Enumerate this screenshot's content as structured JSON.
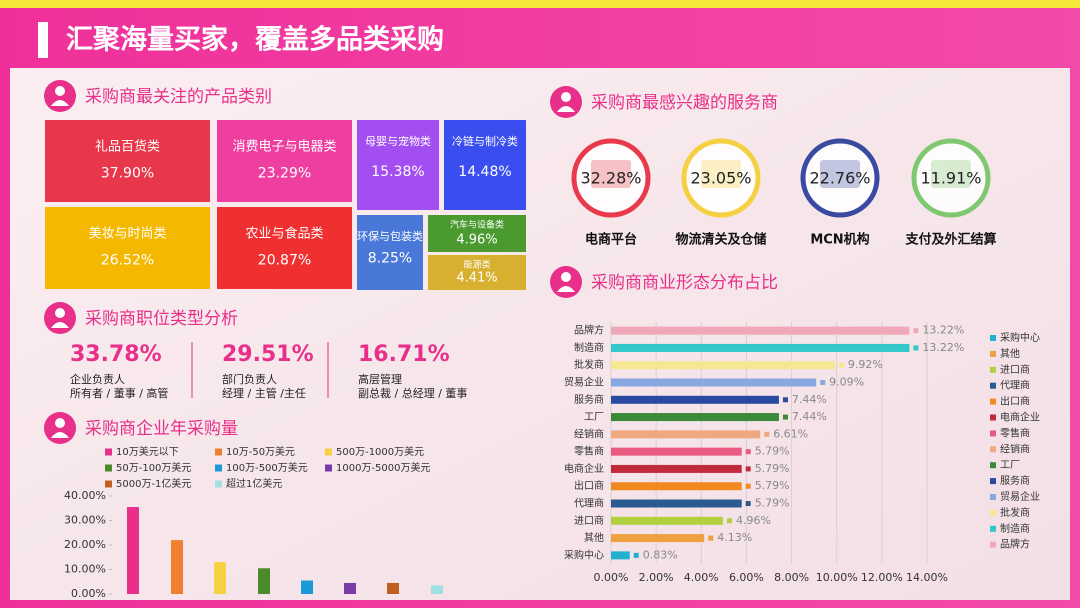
{
  "title": "汇聚海量买家，覆盖多品类采购",
  "chart_data": [
    {
      "type": "treemap",
      "title": "采购商最关注的产品类别",
      "categories": [
        "礼品百货类",
        "消费电子与电器类",
        "美妆与时尚类",
        "农业与食品类",
        "母婴与宠物类",
        "冷链与制冷类",
        "环保与包装类",
        "汽车与设备类",
        "能源类"
      ],
      "values": [
        37.9,
        23.29,
        26.52,
        20.87,
        15.38,
        14.48,
        8.25,
        4.96,
        4.41
      ],
      "value_labels": [
        "37.90%",
        "23.29%",
        "26.52%",
        "20.87%",
        "15.38%",
        "14.48%",
        "8.25%",
        "4.96%",
        "4.41%"
      ],
      "colors": [
        "#e8364a",
        "#ee3fa0",
        "#f5b800",
        "#f03030",
        "#a24ef0",
        "#3a4ef0",
        "#4a78d8",
        "#4a9a30",
        "#d8b030"
      ]
    },
    {
      "type": "stat",
      "title": "采购商职位类型分析",
      "values": [
        33.78,
        29.51,
        16.71
      ],
      "value_labels": [
        "33.78%",
        "29.51%",
        "16.71%"
      ],
      "descriptions": [
        [
          "企业负责人",
          "所有者 / 董事 / 高管"
        ],
        [
          "部门负责人",
          "经理 / 主管 /主任"
        ],
        [
          "高层管理",
          "副总裁 / 总经理 / 董事"
        ]
      ]
    },
    {
      "type": "bar",
      "title": "采购商企业年采购量",
      "categories": [
        "10万美元以下",
        "10万-50万美元",
        "500万-1000万美元",
        "50万-100万美元",
        "100万-500万美元",
        "1000万-5000万美元",
        "5000万-1亿美元",
        "超过1亿美元"
      ],
      "values": [
        35.5,
        22,
        13,
        10.5,
        5.5,
        4.5,
        4.5,
        3.5
      ],
      "colors": [
        "#e8308a",
        "#f08030",
        "#f5d040",
        "#4a8a2a",
        "#1a9ad8",
        "#7a3aa8",
        "#c06020",
        "#a0e0e0"
      ],
      "ylim": [
        0,
        40
      ],
      "yticks": [
        {
          "value": 0,
          "label": "0.00%"
        },
        {
          "value": 10,
          "label": "10.00%"
        },
        {
          "value": 20,
          "label": "20.00%"
        },
        {
          "value": 30,
          "label": "30.00%"
        },
        {
          "value": 40,
          "label": "40.00%"
        }
      ]
    },
    {
      "type": "ring",
      "title": "采购商最感兴趣的服务商",
      "categories": [
        "电商平台",
        "物流清关及仓储",
        "MCN机构",
        "支付及外汇结算"
      ],
      "values": [
        32.28,
        23.05,
        22.76,
        11.91
      ],
      "value_labels": [
        "32.28%",
        "23.05%",
        "22.76%",
        "11.91%"
      ],
      "colors": [
        "#e83a4a",
        "#f5d040",
        "#3a4aa0",
        "#80c870"
      ]
    },
    {
      "type": "hbar",
      "title": "采购商商业形态分布占比",
      "categories": [
        "品牌方",
        "制造商",
        "批发商",
        "贸易企业",
        "服务商",
        "工厂",
        "经销商",
        "零售商",
        "电商企业",
        "出口商",
        "代理商",
        "进口商",
        "其他",
        "采购中心"
      ],
      "values": [
        13.22,
        13.22,
        9.92,
        9.09,
        7.44,
        7.44,
        6.61,
        5.79,
        5.79,
        5.79,
        5.79,
        4.96,
        4.13,
        0.83
      ],
      "value_labels": [
        "13.22%",
        "13.22%",
        "9.92%",
        "9.09%",
        "7.44%",
        "7.44%",
        "6.61%",
        "5.79%",
        "5.79%",
        "5.79%",
        "5.79%",
        "4.96%",
        "4.13%",
        "0.83%"
      ],
      "colors": [
        "#f0a8b8",
        "#30c8c8",
        "#f5e890",
        "#8aa8e0",
        "#2a4aa0",
        "#3a8a3a",
        "#f0a880",
        "#e85a80",
        "#c02a3a",
        "#f08a20",
        "#2a5a90",
        "#b0d040",
        "#f0a040",
        "#20b0d0"
      ],
      "xlim": [
        0,
        14
      ],
      "xticks": [
        {
          "value": 0,
          "label": "0.00%"
        },
        {
          "value": 2,
          "label": "2.00%"
        },
        {
          "value": 4,
          "label": "4.00%"
        },
        {
          "value": 6,
          "label": "6.00%"
        },
        {
          "value": 8,
          "label": "8.00%"
        },
        {
          "value": 10,
          "label": "10.00%"
        },
        {
          "value": 12,
          "label": "12.00%"
        },
        {
          "value": 14,
          "label": "14.00%"
        }
      ],
      "grid": true,
      "legend": "right"
    }
  ]
}
